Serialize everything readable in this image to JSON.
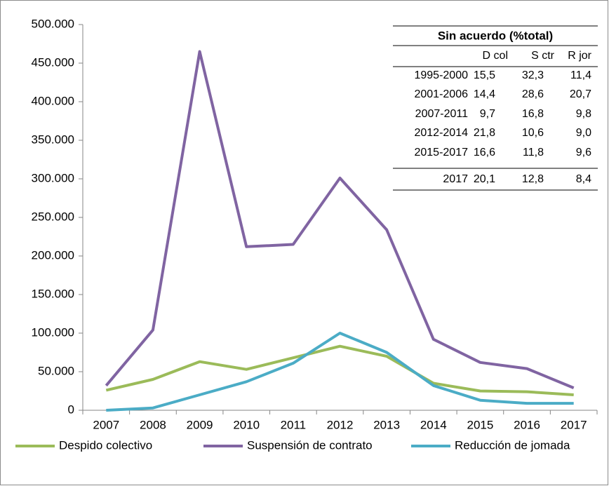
{
  "chart_data": {
    "type": "line",
    "categories": [
      "2007",
      "2008",
      "2009",
      "2010",
      "2011",
      "2012",
      "2013",
      "2014",
      "2015",
      "2016",
      "2017"
    ],
    "series": [
      {
        "name": "Despido colectivo",
        "color": "#9bbb59",
        "values": [
          26000,
          40000,
          63000,
          53000,
          68000,
          83000,
          70000,
          35000,
          25000,
          24000,
          20000
        ]
      },
      {
        "name": "Suspensión de contrato",
        "color": "#8064a2",
        "values": [
          32000,
          104000,
          465000,
          212000,
          215000,
          301000,
          234000,
          92000,
          62000,
          54000,
          29000
        ]
      },
      {
        "name": "Reducción de jomada",
        "color": "#4bacc6",
        "values": [
          0,
          3000,
          20000,
          37000,
          61000,
          100000,
          75000,
          32000,
          13000,
          9000,
          9000
        ]
      }
    ],
    "ylim": [
      0,
      500000
    ],
    "yticks": [
      0,
      {
        "value": 50000,
        "label": "50.000"
      },
      {
        "value": 100000,
        "label": "100.000"
      },
      {
        "value": 150000,
        "label": "150.000"
      },
      {
        "value": 200000,
        "label": "200.000"
      },
      {
        "value": 250000,
        "label": "250.000"
      },
      {
        "value": 300000,
        "label": "300.000"
      },
      {
        "value": 350000,
        "label": "350.000"
      },
      {
        "value": 400000,
        "label": "400.000"
      },
      {
        "value": 450000,
        "label": "450.000"
      },
      {
        "value": 500000,
        "label": "500.000"
      }
    ],
    "grid": false,
    "legend": "bottom"
  },
  "table": {
    "title": "Sin acuerdo (%total)",
    "columns": [
      "D col",
      "S ctr",
      "R jor"
    ],
    "rows": [
      {
        "label": "1995-2000",
        "cells": [
          "15,5",
          "32,3",
          "11,4"
        ]
      },
      {
        "label": "2001-2006",
        "cells": [
          "14,4",
          "28,6",
          "20,7"
        ]
      },
      {
        "label": "2007-2011",
        "cells": [
          "9,7",
          "16,8",
          "9,8"
        ]
      },
      {
        "label": "2012-2014",
        "cells": [
          "21,8",
          "10,6",
          "9,0"
        ]
      },
      {
        "label": "2015-2017",
        "cells": [
          "16,6",
          "11,8",
          "9,6"
        ]
      },
      {
        "label": "2017",
        "cells": [
          "20,1",
          "12,8",
          "8,4"
        ]
      }
    ]
  }
}
